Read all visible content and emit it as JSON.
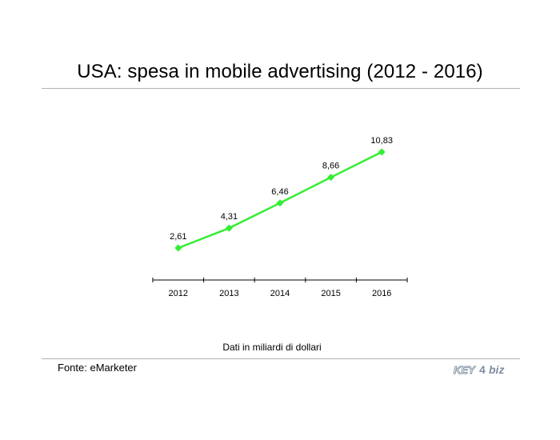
{
  "title": "USA: spesa in mobile advertising (2012 - 2016)",
  "note": "Dati in miliardi di dollari",
  "source": "Fonte: eMarketer",
  "logo": {
    "left_text": "KEY",
    "mark": "4",
    "right_text": "biz"
  },
  "colors": {
    "series": "#33ee33",
    "axis": "#000000",
    "rule": "#b4b4b4",
    "logo": "#7f8fa0"
  },
  "chart_data": {
    "type": "line",
    "title": "USA: spesa in mobile advertising (2012 - 2016)",
    "xlabel": "",
    "ylabel": "",
    "categories": [
      "2012",
      "2013",
      "2014",
      "2015",
      "2016"
    ],
    "series": [
      {
        "name": "Spesa in mobile advertising",
        "values": [
          2.61,
          4.31,
          6.46,
          8.66,
          10.83
        ],
        "labels": [
          "2,61",
          "4,31",
          "6,46",
          "8,66",
          "10,83"
        ]
      }
    ],
    "ylim": [
      0,
      14
    ],
    "grid": false,
    "legend": "none"
  }
}
